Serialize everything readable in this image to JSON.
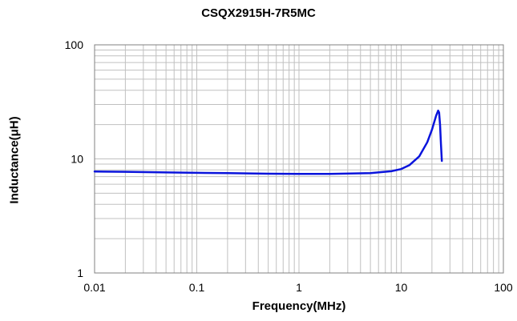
{
  "chart_data": {
    "type": "line",
    "title": "CSQX2915H-7R5MC",
    "xlabel": "Frequency(MHz)",
    "ylabel": "Inductance(μH)",
    "x_scale": "log",
    "y_scale": "log",
    "xlim": [
      0.01,
      100
    ],
    "ylim": [
      1,
      100
    ],
    "x_ticks": [
      "0.01",
      "0.1",
      "1",
      "10",
      "100"
    ],
    "y_ticks": [
      "1",
      "10",
      "100"
    ],
    "grid": true,
    "legend": "none",
    "colors": {
      "line": "#0a14dc",
      "grid": "#c0c0c0",
      "axis": "#808080"
    },
    "series": [
      {
        "x": [
          0.01,
          0.02,
          0.05,
          0.1,
          0.2,
          0.5,
          1,
          2,
          5,
          8,
          10,
          12,
          15,
          18,
          20,
          22,
          23,
          23.5,
          24,
          24.5,
          25
        ],
        "y": [
          7.75,
          7.7,
          7.62,
          7.55,
          7.5,
          7.42,
          7.38,
          7.38,
          7.5,
          7.8,
          8.15,
          8.8,
          10.5,
          14,
          18,
          24,
          26.5,
          25.5,
          20,
          13.5,
          9.6
        ]
      }
    ]
  }
}
